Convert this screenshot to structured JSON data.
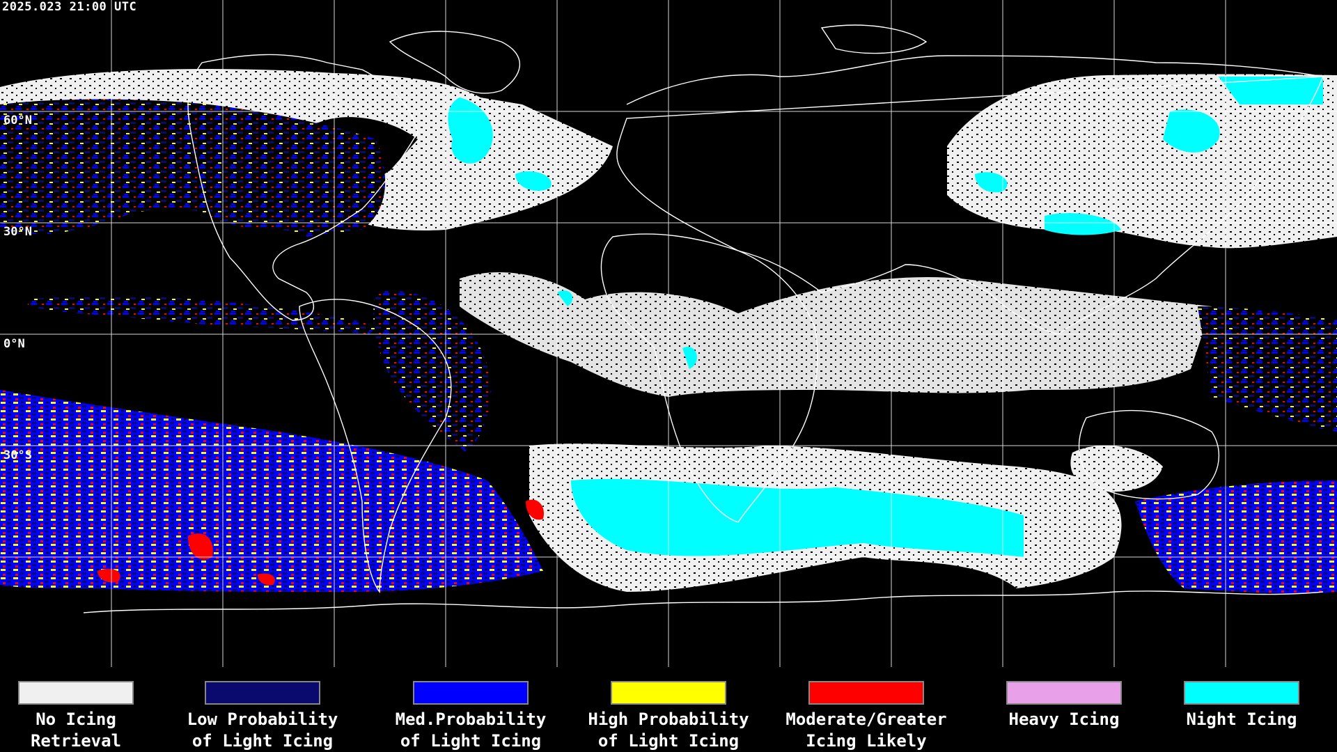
{
  "header": {
    "timestamp": "2025.023 21:00 UTC"
  },
  "grid": {
    "lat_labels": [
      "60°N",
      "30°N",
      "0°N",
      "30°S"
    ],
    "colors": {
      "grid": "#ffffff",
      "coast": "#ffffff"
    }
  },
  "legend": {
    "items": [
      {
        "label": "No Icing\nRetrieval",
        "color": "#f0f0f0"
      },
      {
        "label": "Low Probability\nof Light Icing",
        "color": "#0a0a6e"
      },
      {
        "label": "Med.Probability\nof Light Icing",
        "color": "#0000ff"
      },
      {
        "label": "High Probability\nof Light Icing",
        "color": "#ffff00"
      },
      {
        "label": "Moderate/Greater\nIcing Likely",
        "color": "#ff0000"
      },
      {
        "label": "Heavy Icing",
        "color": "#e8a0e8"
      },
      {
        "label": "Night Icing",
        "color": "#00ffff"
      }
    ]
  }
}
